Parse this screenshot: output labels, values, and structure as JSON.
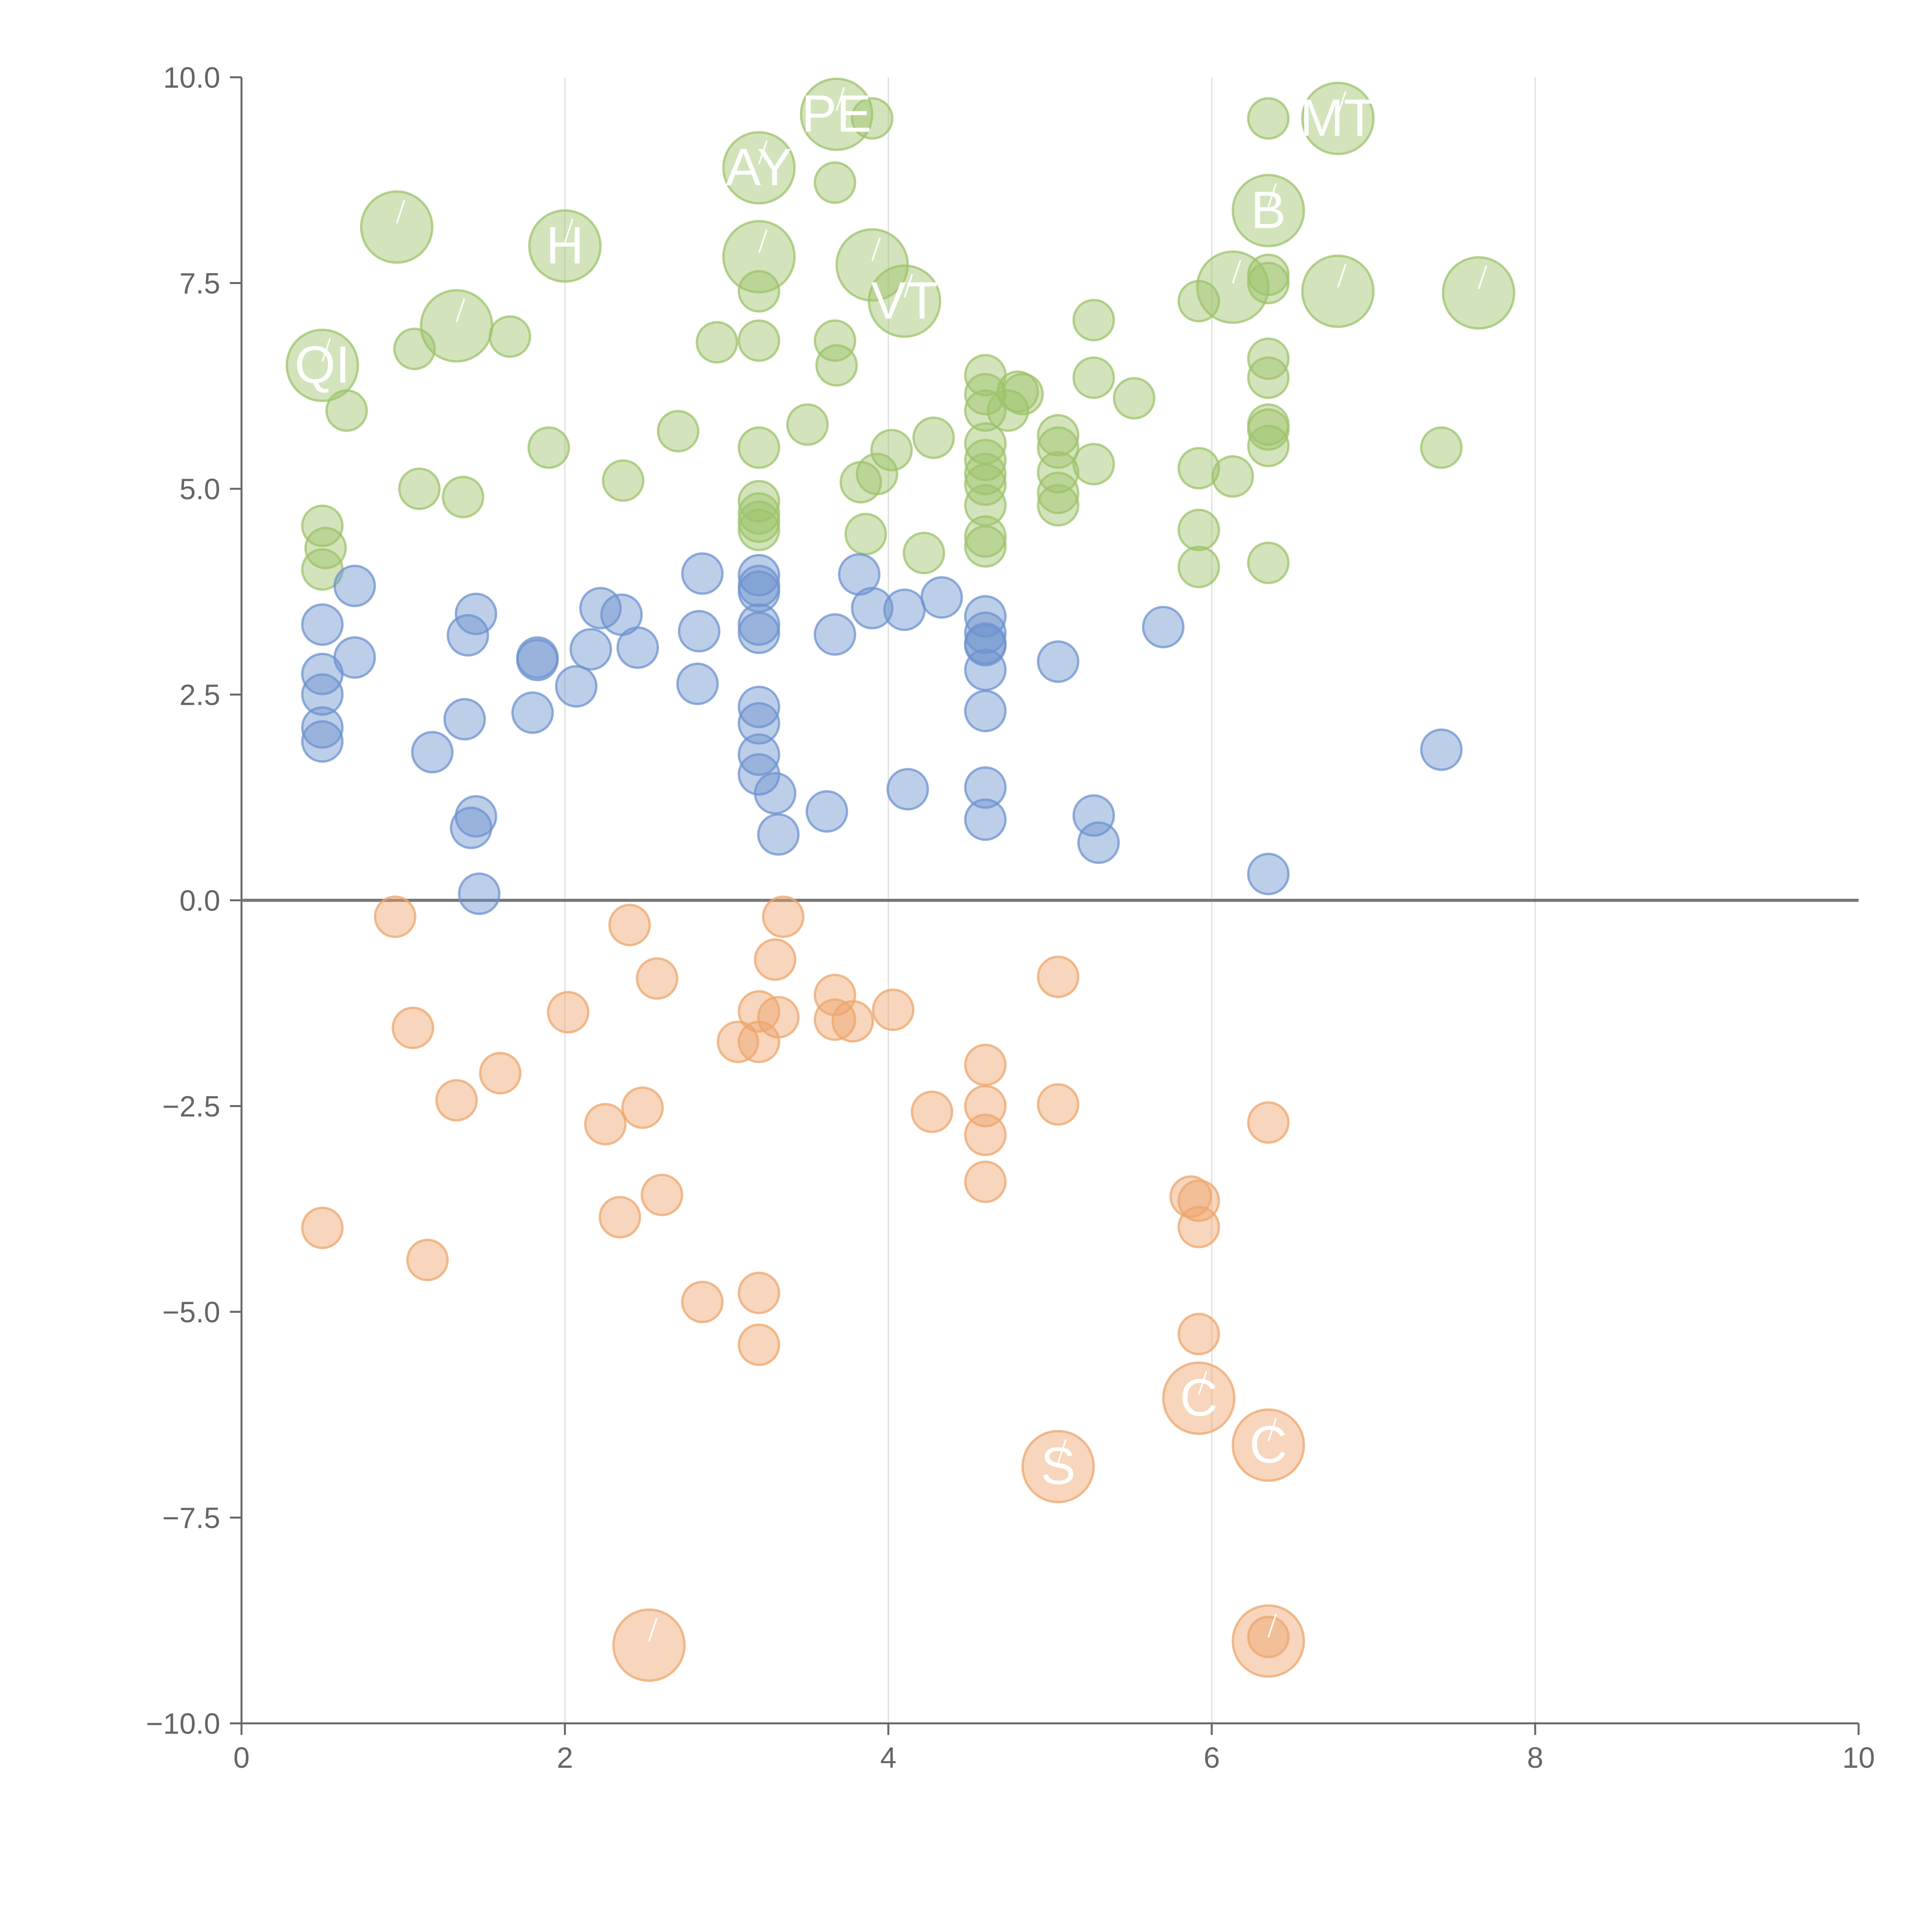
{
  "chart_data": {
    "type": "scatter",
    "title": "",
    "xlabel": "",
    "ylabel": "",
    "xlim": [
      0,
      10
    ],
    "ylim": [
      -10,
      10
    ],
    "grid": {
      "x": true,
      "y": false
    },
    "zero_line": true,
    "x_ticks": [
      "0",
      "2",
      "4",
      "6",
      "8",
      "10"
    ],
    "y_ticks": [
      "10.0",
      "7.5",
      "5.0",
      "2.5",
      "0.0",
      "−2.5",
      "−5.0",
      "−7.5",
      "−10.0"
    ],
    "colors": {
      "green": "#9dc36b",
      "blue": "#6d93cf",
      "orange": "#eea56c",
      "axis": "#666666",
      "grid": "#dddddd"
    },
    "series": [
      {
        "color": "green",
        "points": [
          [
            0.5,
            4.55
          ],
          [
            0.52,
            4.28
          ],
          [
            0.5,
            4.02
          ],
          [
            0.65,
            5.95
          ],
          [
            1.07,
            6.7
          ],
          [
            1.1,
            5.0
          ],
          [
            1.37,
            4.9
          ],
          [
            1.66,
            6.85
          ],
          [
            1.9,
            5.5
          ],
          [
            2.36,
            5.1
          ],
          [
            2.7,
            5.7
          ],
          [
            2.94,
            6.78
          ],
          [
            3.2,
            5.5
          ],
          [
            3.2,
            6.8
          ],
          [
            3.2,
            7.4
          ],
          [
            3.2,
            4.85
          ],
          [
            3.2,
            4.7
          ],
          [
            3.2,
            4.6
          ],
          [
            3.2,
            4.5
          ],
          [
            3.5,
            5.78
          ],
          [
            3.67,
            6.8
          ],
          [
            3.67,
            8.72
          ],
          [
            3.83,
            5.08
          ],
          [
            3.86,
            4.45
          ],
          [
            3.93,
            5.18
          ],
          [
            4.02,
            5.47
          ],
          [
            4.22,
            4.22
          ],
          [
            4.28,
            5.62
          ],
          [
            4.6,
            6.38
          ],
          [
            4.6,
            6.15
          ],
          [
            4.6,
            5.95
          ],
          [
            4.6,
            5.55
          ],
          [
            4.6,
            5.35
          ],
          [
            4.6,
            5.18
          ],
          [
            4.6,
            5.05
          ],
          [
            4.6,
            4.8
          ],
          [
            4.6,
            4.42
          ],
          [
            4.6,
            4.3
          ],
          [
            4.74,
            5.95
          ],
          [
            4.8,
            6.18
          ],
          [
            4.83,
            6.15
          ],
          [
            5.05,
            5.65
          ],
          [
            5.05,
            5.5
          ],
          [
            5.05,
            5.2
          ],
          [
            5.05,
            4.95
          ],
          [
            5.05,
            4.8
          ],
          [
            5.27,
            7.05
          ],
          [
            5.27,
            6.35
          ],
          [
            5.27,
            5.3
          ],
          [
            5.52,
            6.1
          ],
          [
            5.92,
            7.28
          ],
          [
            5.92,
            5.25
          ],
          [
            5.92,
            4.5
          ],
          [
            5.92,
            4.05
          ],
          [
            6.13,
            5.15
          ],
          [
            6.35,
            9.5
          ],
          [
            6.35,
            7.6
          ],
          [
            6.35,
            7.5
          ],
          [
            6.35,
            6.58
          ],
          [
            6.35,
            6.35
          ],
          [
            6.35,
            5.78
          ],
          [
            6.35,
            5.72
          ],
          [
            6.35,
            5.52
          ],
          [
            6.35,
            4.1
          ],
          [
            7.42,
            5.5
          ],
          [
            3.9,
            9.5
          ],
          [
            3.68,
            6.5
          ]
        ]
      },
      {
        "color": "blue",
        "points": [
          [
            0.5,
            3.35
          ],
          [
            0.5,
            2.75
          ],
          [
            0.5,
            2.5
          ],
          [
            0.5,
            2.1
          ],
          [
            0.5,
            1.93
          ],
          [
            0.7,
            3.82
          ],
          [
            0.7,
            2.95
          ],
          [
            1.18,
            1.8
          ],
          [
            1.38,
            2.2
          ],
          [
            1.4,
            3.22
          ],
          [
            1.42,
            0.88
          ],
          [
            1.45,
            1.02
          ],
          [
            1.45,
            3.48
          ],
          [
            1.47,
            0.08
          ],
          [
            1.8,
            2.28
          ],
          [
            1.83,
            2.95
          ],
          [
            1.83,
            2.92
          ],
          [
            2.07,
            2.6
          ],
          [
            2.16,
            3.05
          ],
          [
            2.22,
            3.55
          ],
          [
            2.35,
            3.47
          ],
          [
            2.45,
            3.07
          ],
          [
            2.82,
            2.63
          ],
          [
            2.83,
            3.27
          ],
          [
            2.85,
            3.97
          ],
          [
            3.2,
            3.95
          ],
          [
            3.2,
            3.82
          ],
          [
            3.2,
            3.75
          ],
          [
            3.2,
            3.35
          ],
          [
            3.2,
            3.25
          ],
          [
            3.2,
            2.35
          ],
          [
            3.2,
            2.15
          ],
          [
            3.2,
            1.77
          ],
          [
            3.2,
            1.53
          ],
          [
            3.3,
            1.3
          ],
          [
            3.32,
            0.8
          ],
          [
            3.62,
            1.08
          ],
          [
            3.67,
            3.23
          ],
          [
            3.82,
            3.96
          ],
          [
            3.9,
            3.55
          ],
          [
            4.1,
            3.53
          ],
          [
            4.12,
            1.35
          ],
          [
            4.33,
            3.68
          ],
          [
            4.6,
            3.45
          ],
          [
            4.6,
            3.25
          ],
          [
            4.6,
            3.12
          ],
          [
            4.6,
            3.1
          ],
          [
            4.6,
            2.8
          ],
          [
            4.6,
            2.3
          ],
          [
            4.6,
            1.37
          ],
          [
            4.6,
            0.98
          ],
          [
            5.05,
            2.9
          ],
          [
            5.27,
            1.03
          ],
          [
            5.3,
            0.7
          ],
          [
            5.7,
            3.32
          ],
          [
            6.35,
            0.32
          ],
          [
            7.42,
            1.83
          ]
        ]
      },
      {
        "color": "orange",
        "points": [
          [
            0.5,
            -3.98
          ],
          [
            0.95,
            -0.2
          ],
          [
            1.06,
            -1.55
          ],
          [
            1.15,
            -4.37
          ],
          [
            1.33,
            -2.43
          ],
          [
            1.6,
            -2.1
          ],
          [
            2.02,
            -1.36
          ],
          [
            2.25,
            -2.72
          ],
          [
            2.34,
            -3.85
          ],
          [
            2.4,
            -0.3
          ],
          [
            2.48,
            -2.52
          ],
          [
            2.57,
            -0.95
          ],
          [
            2.6,
            -3.58
          ],
          [
            2.85,
            -4.88
          ],
          [
            3.07,
            -1.72
          ],
          [
            3.2,
            -1.35
          ],
          [
            3.2,
            -1.72
          ],
          [
            3.2,
            -4.77
          ],
          [
            3.2,
            -5.4
          ],
          [
            3.3,
            -0.72
          ],
          [
            3.32,
            -1.42
          ],
          [
            3.35,
            -0.2
          ],
          [
            3.67,
            -1.15
          ],
          [
            3.67,
            -1.45
          ],
          [
            3.78,
            -1.47
          ],
          [
            4.03,
            -1.33
          ],
          [
            4.27,
            -2.57
          ],
          [
            4.6,
            -2.0
          ],
          [
            4.6,
            -2.5
          ],
          [
            4.6,
            -2.85
          ],
          [
            4.6,
            -3.42
          ],
          [
            5.05,
            -0.93
          ],
          [
            5.05,
            -2.48
          ],
          [
            5.87,
            -3.6
          ],
          [
            5.92,
            -3.65
          ],
          [
            5.92,
            -3.97
          ],
          [
            5.92,
            -5.27
          ],
          [
            6.35,
            -2.7
          ],
          [
            6.35,
            -8.95
          ]
        ]
      }
    ],
    "labeled_points": [
      {
        "text": "PE",
        "x": 3.68,
        "y": 9.55,
        "color": "green"
      },
      {
        "text": "AY",
        "x": 3.2,
        "y": 8.9,
        "color": "green"
      },
      {
        "text": "MT",
        "x": 6.78,
        "y": 9.5,
        "color": "green"
      },
      {
        "text": "B",
        "x": 6.35,
        "y": 8.38,
        "color": "green"
      },
      {
        "text": "",
        "x": 0.96,
        "y": 8.18,
        "color": "green"
      },
      {
        "text": "H",
        "x": 2.0,
        "y": 7.95,
        "color": "green"
      },
      {
        "text": "",
        "x": 3.2,
        "y": 7.82,
        "color": "green"
      },
      {
        "text": "",
        "x": 3.9,
        "y": 7.72,
        "color": "green"
      },
      {
        "text": "VT",
        "x": 4.1,
        "y": 7.28,
        "color": "green"
      },
      {
        "text": "",
        "x": 1.33,
        "y": 6.98,
        "color": "green"
      },
      {
        "text": "QI",
        "x": 0.5,
        "y": 6.5,
        "color": "green"
      },
      {
        "text": "",
        "x": 6.13,
        "y": 7.45,
        "color": "green"
      },
      {
        "text": "",
        "x": 6.78,
        "y": 7.4,
        "color": "green"
      },
      {
        "text": "",
        "x": 7.65,
        "y": 7.38,
        "color": "green"
      },
      {
        "text": "C",
        "x": 5.92,
        "y": -6.05,
        "color": "orange"
      },
      {
        "text": "C",
        "x": 6.35,
        "y": -6.62,
        "color": "orange"
      },
      {
        "text": "S",
        "x": 5.05,
        "y": -6.88,
        "color": "orange"
      },
      {
        "text": "",
        "x": 2.52,
        "y": -9.05,
        "color": "orange"
      },
      {
        "text": "",
        "x": 6.35,
        "y": -9.0,
        "color": "orange"
      }
    ]
  }
}
